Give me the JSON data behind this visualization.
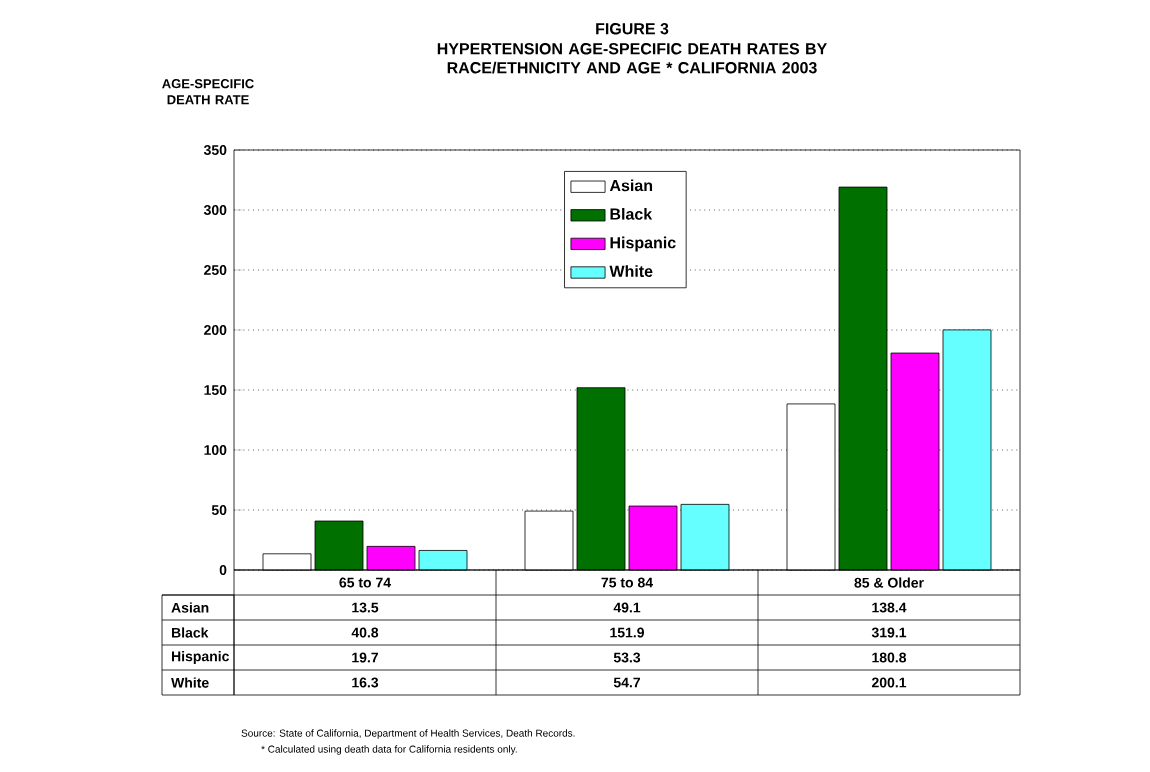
{
  "chart_data": {
    "type": "bar",
    "title": "FIGURE 3",
    "subtitle": "HYPERTENSION AGE-SPECIFIC DEATH RATES BY RACE/ETHNICITY AND AGE * CALIFORNIA 2003",
    "ylabel": "AGE-SPECIFIC DEATH RATE",
    "categories": [
      "65 to 74",
      "75 to 84",
      "85 & Older"
    ],
    "series": [
      {
        "name": "Asian",
        "color": "#ffffff",
        "values": [
          13.5,
          49.1,
          138.4
        ],
        "value_labels": [
          "13.5",
          "49.1",
          "138.4"
        ]
      },
      {
        "name": "Black",
        "color": "#007000",
        "values": [
          40.8,
          151.9,
          319.1
        ],
        "value_labels": [
          "40.8",
          "151.9",
          "319.1"
        ]
      },
      {
        "name": "Hispanic",
        "color": "#ff00ff",
        "values": [
          19.7,
          53.3,
          180.8
        ],
        "value_labels": [
          "19.7",
          "53.3",
          "180.8"
        ]
      },
      {
        "name": "White",
        "color": "#66ffff",
        "values": [
          16.3,
          54.7,
          200.1
        ],
        "value_labels": [
          "16.3",
          "54.7",
          "200.1"
        ]
      }
    ],
    "ylim": [
      0,
      350
    ],
    "yticks": [
      0,
      50,
      100,
      150,
      200,
      250,
      300,
      350
    ],
    "grid": "y",
    "legend": "top",
    "annotations": [
      "Source:  State of California, Department of Health Services, Death Records.",
      "* Calculated using death data for California residents only."
    ]
  }
}
